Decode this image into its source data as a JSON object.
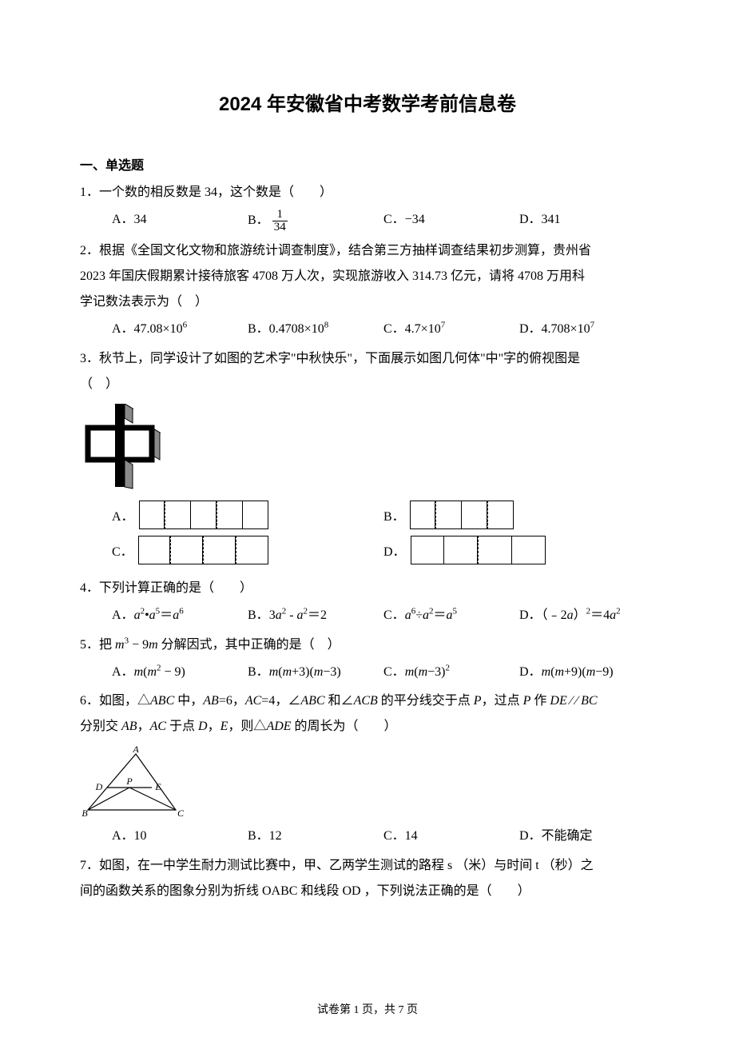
{
  "title": "2024 年安徽省中考数学考前信息卷",
  "section_heading": "一、单选题",
  "q1": {
    "stem": "1．一个数的相反数是 34，这个数是（　　）",
    "A": "A．34",
    "B_prefix": "B．",
    "B_num": "1",
    "B_den": "34",
    "C": "C．−34",
    "D": "D．341"
  },
  "q2": {
    "line1": "2．根据《全国文化文物和旅游统计调查制度》，结合第三方抽样调查结果初步测算，贵州省",
    "line2": "2023 年国庆假期累计接待旅客 4708 万人次，实现旅游收入 314.73 亿元，请将 4708 万用科",
    "line3": "学记数法表示为（　）",
    "A_pre": "A．47.08×10",
    "A_sup": "6",
    "B_pre": "B．0.4708×10",
    "B_sup": "8",
    "C_pre": "C．4.7×10",
    "C_sup": "7",
    "D_pre": "D．4.708×10",
    "D_sup": "7"
  },
  "q3": {
    "line1": "3．秋节上，同学设计了如图的艺术字\"中秋快乐\"，下面展示如图几何体\"中\"字的俯视图是",
    "line2": "（　）",
    "A": "A．",
    "B": "B．",
    "C": "C．",
    "D": "D．",
    "figure": {
      "stroke": "#000000",
      "gray": "#bdbdbd"
    },
    "optA": {
      "widths": [
        32,
        0,
        32,
        32,
        0,
        32,
        32
      ],
      "dashed_at": [
        1,
        4
      ]
    },
    "optB": {
      "widths": [
        32,
        0,
        32,
        32,
        0,
        32
      ],
      "dashed_at": [
        1,
        4
      ]
    },
    "optC": {
      "widths": [
        40,
        0,
        40,
        0,
        40,
        0,
        40
      ],
      "dashed_at": [
        1,
        3,
        5
      ]
    },
    "optD": {
      "widths": [
        42,
        42,
        0,
        42,
        42
      ],
      "dashed_at": [
        2
      ]
    }
  },
  "q4": {
    "stem": "4．下列计算正确的是（　　）",
    "A": "A．",
    "B": "B．",
    "C": "C．",
    "D": "D．"
  },
  "q5": {
    "stem_pre": "5．把 ",
    "stem_post": " 分解因式，其中正确的是（　）",
    "A": "A．",
    "B": "B．",
    "C": "C．",
    "D": "D．"
  },
  "q6": {
    "line1_pre": "6．如图，",
    "line1_mid": " 中，",
    "line2_pre": "分别交 ",
    "line2_mid": " 于点 ",
    "line2_post": "，则",
    "line2_end": " 的周长为（　　）",
    "A": "A．10",
    "B": "B．12",
    "C": "C．14",
    "D": "D．不能确定",
    "labels": {
      "A": "A",
      "B": "B",
      "C": "C",
      "D": "D",
      "E": "E",
      "P": "P"
    }
  },
  "q7": {
    "line1": "7．如图，在一中学生耐力测试比赛中，甲、乙两学生测试的路程 s （米）与时间 t （秒）之",
    "line2": "间的函数关系的图象分别为折线 OABC 和线段 OD ，下列说法正确的是（　　）"
  },
  "footer": "试卷第 1 页，共 7 页"
}
